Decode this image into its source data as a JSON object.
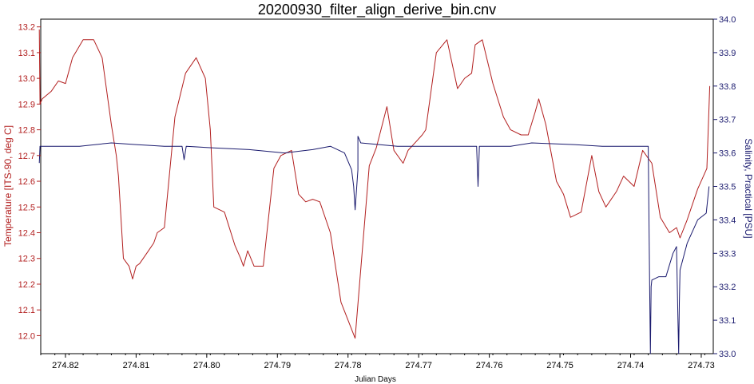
{
  "chart_data": {
    "type": "line",
    "title": "20200930_filter_align_derive_bin.cnv",
    "xlabel": "Julian Days",
    "ylabel_left": "Temperature [ITS-90, deg C]",
    "ylabel_right": "Salinity, Practical [PSU]",
    "x_reversed": true,
    "xlim": [
      274.8235,
      274.7283
    ],
    "ylim_left": [
      11.93,
      13.23
    ],
    "ylim_right": [
      33.0,
      34.0
    ],
    "x_ticks": [
      274.82,
      274.81,
      274.8,
      274.79,
      274.78,
      274.77,
      274.76,
      274.75,
      274.74,
      274.73
    ],
    "x_tick_labels": [
      "274.82",
      "274.81",
      "274.80",
      "274.79",
      "274.78",
      "274.77",
      "274.76",
      "274.75",
      "274.74",
      "274.73"
    ],
    "y_left_ticks": [
      12.0,
      12.1,
      12.2,
      12.3,
      12.4,
      12.5,
      12.6,
      12.7,
      12.8,
      12.9,
      13.0,
      13.1,
      13.2
    ],
    "y_left_tick_labels": [
      "12.0",
      "12.1",
      "12.2",
      "12.3",
      "12.4",
      "12.5",
      "12.6",
      "12.7",
      "12.8",
      "12.9",
      "13.0",
      "13.1",
      "13.2"
    ],
    "y_right_ticks": [
      33.0,
      33.1,
      33.2,
      33.3,
      33.4,
      33.5,
      33.6,
      33.7,
      33.8,
      33.9,
      34.0
    ],
    "y_right_tick_labels": [
      "33.0",
      "33.1",
      "33.2",
      "33.3",
      "33.4",
      "33.5",
      "33.6",
      "33.7",
      "33.8",
      "33.9",
      "34.0"
    ],
    "grid": false,
    "colors": {
      "temperature": "#b21f1f",
      "salinity": "#1a1a6e"
    },
    "series": [
      {
        "axis": "left",
        "x": [
          274.8237,
          274.8236,
          274.8233,
          274.822,
          274.821,
          274.82,
          274.819,
          274.8175,
          274.816,
          274.8148,
          274.8135,
          274.8128,
          274.8125,
          274.8118,
          274.811,
          274.8105,
          274.81,
          274.8095,
          274.8085,
          274.8075,
          274.807,
          274.806,
          274.8045,
          274.803,
          274.8015,
          274.8002,
          274.7995,
          274.799,
          274.7975,
          274.796,
          274.7952,
          274.7948,
          274.7942,
          274.7933,
          274.792,
          274.7905,
          274.7895,
          274.788,
          274.787,
          274.786,
          274.785,
          274.784,
          274.7825,
          274.781,
          274.779,
          274.777,
          274.776,
          274.7745,
          274.7735,
          274.7722,
          274.7715,
          274.7705,
          274.7695,
          274.769,
          274.7675,
          274.766,
          274.7645,
          274.7635,
          274.7625,
          274.762,
          274.761,
          274.7595,
          274.758,
          274.757,
          274.7555,
          274.7545,
          274.7535,
          274.753,
          274.752,
          274.7505,
          274.7495,
          274.7485,
          274.747,
          274.7455,
          274.7445,
          274.7435,
          274.742,
          274.741,
          274.7395,
          274.7383,
          274.737,
          274.7358,
          274.7345,
          274.7335,
          274.733,
          274.732,
          274.7305,
          274.7292,
          274.7288
        ],
        "y": [
          13.19,
          12.9,
          12.92,
          12.95,
          12.99,
          12.98,
          13.08,
          13.15,
          13.15,
          13.08,
          12.82,
          12.7,
          12.62,
          12.3,
          12.27,
          12.22,
          12.27,
          12.28,
          12.32,
          12.36,
          12.4,
          12.42,
          12.85,
          13.02,
          13.08,
          13.0,
          12.8,
          12.5,
          12.48,
          12.35,
          12.3,
          12.27,
          12.33,
          12.27,
          12.27,
          12.65,
          12.7,
          12.72,
          12.55,
          12.52,
          12.53,
          12.52,
          12.4,
          12.13,
          11.99,
          12.66,
          12.73,
          12.89,
          12.72,
          12.67,
          12.72,
          12.75,
          12.78,
          12.8,
          13.1,
          13.15,
          12.96,
          13.0,
          13.02,
          13.13,
          13.15,
          12.98,
          12.85,
          12.8,
          12.78,
          12.78,
          12.87,
          12.92,
          12.82,
          12.6,
          12.55,
          12.46,
          12.48,
          12.7,
          12.56,
          12.5,
          12.56,
          12.62,
          12.58,
          12.72,
          12.67,
          12.46,
          12.4,
          12.42,
          12.38,
          12.45,
          12.57,
          12.65,
          12.97
        ]
      },
      {
        "axis": "right",
        "x": [
          274.8237,
          274.8236,
          274.8235,
          274.822,
          274.818,
          274.8135,
          274.81,
          274.806,
          274.8035,
          274.8032,
          274.8029,
          274.799,
          274.794,
          274.789,
          274.785,
          274.7825,
          274.7805,
          274.7795,
          274.7792,
          274.779,
          274.7786,
          274.7786,
          274.7782,
          274.773,
          274.768,
          274.7618,
          274.7616,
          274.7614,
          274.757,
          274.754,
          274.748,
          274.744,
          274.741,
          274.7375,
          274.7373,
          274.7372,
          274.7371,
          274.737,
          274.736,
          274.735,
          274.734,
          274.7335,
          274.7333,
          274.7332,
          274.7331,
          274.733,
          274.732,
          274.7305,
          274.7293,
          274.7289
        ],
        "y": [
          33.57,
          33.62,
          33.62,
          33.62,
          33.62,
          33.63,
          33.625,
          33.62,
          33.62,
          33.58,
          33.62,
          33.615,
          33.61,
          33.6,
          33.61,
          33.62,
          33.6,
          33.55,
          33.5,
          33.43,
          33.55,
          33.65,
          33.63,
          33.62,
          33.62,
          33.62,
          33.5,
          33.62,
          33.62,
          33.63,
          33.625,
          33.62,
          33.62,
          33.62,
          33.19,
          33.0,
          33.2,
          33.22,
          33.23,
          33.23,
          33.3,
          33.32,
          33.1,
          33.0,
          33.15,
          33.25,
          33.33,
          33.4,
          33.42,
          33.5
        ]
      }
    ]
  }
}
